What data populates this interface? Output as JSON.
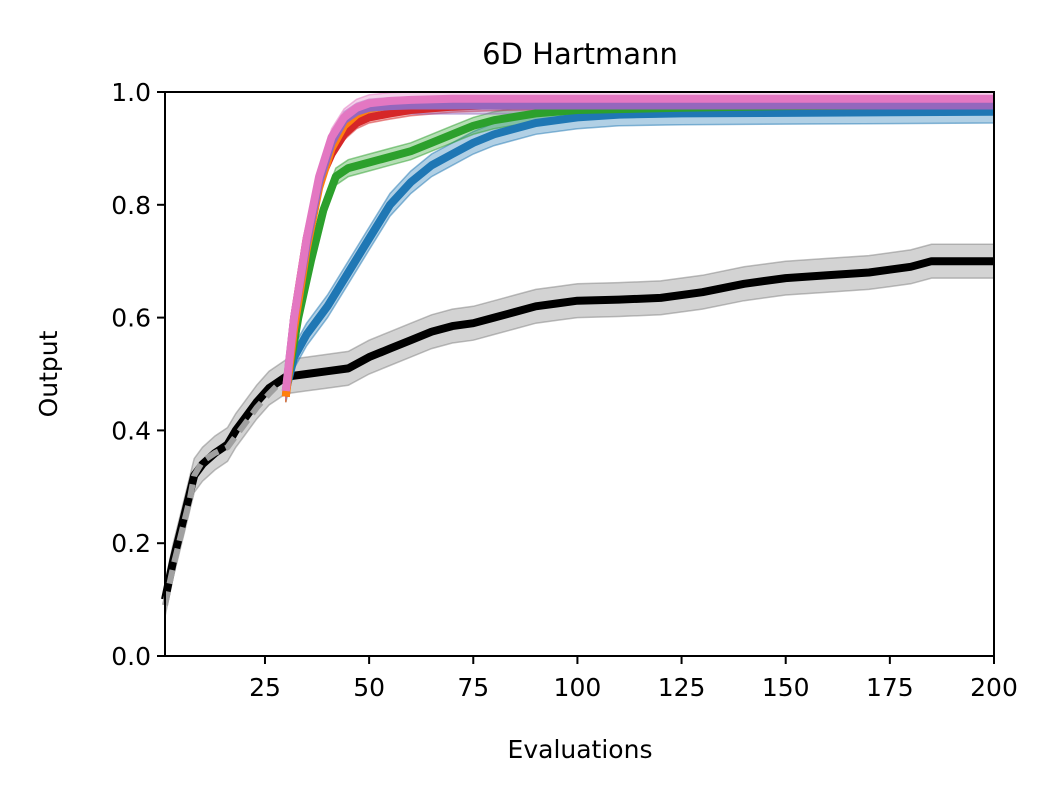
{
  "chart_data": {
    "type": "line",
    "title": "6D Hartmann",
    "xlabel": "Evaluations",
    "ylabel": "Output",
    "xlim": [
      1,
      200
    ],
    "ylim": [
      0.0,
      1.0
    ],
    "xticks": [
      25,
      50,
      75,
      100,
      125,
      150,
      175,
      200
    ],
    "xtick_labels": [
      "25",
      "50",
      "75",
      "100",
      "125",
      "150",
      "175",
      "200"
    ],
    "yticks": [
      0.0,
      0.2,
      0.4,
      0.6,
      0.8,
      1.0
    ],
    "ytick_labels": [
      "0.0",
      "0.2",
      "0.4",
      "0.6",
      "0.8",
      "1.0"
    ],
    "grid": false,
    "series": [
      {
        "name": "baseline-black",
        "color": "#000000",
        "band_color": "#808080",
        "style": "solid",
        "x": [
          1,
          3,
          5,
          7,
          8,
          10,
          13,
          16,
          18,
          20,
          23,
          26,
          28,
          30,
          35,
          40,
          45,
          50,
          55,
          60,
          65,
          70,
          75,
          80,
          85,
          90,
          95,
          100,
          110,
          120,
          130,
          140,
          150,
          160,
          170,
          180,
          185,
          190,
          200
        ],
        "y": [
          0.1,
          0.17,
          0.23,
          0.29,
          0.32,
          0.34,
          0.36,
          0.375,
          0.4,
          0.42,
          0.45,
          0.475,
          0.485,
          0.495,
          0.5,
          0.505,
          0.51,
          0.53,
          0.545,
          0.56,
          0.575,
          0.585,
          0.59,
          0.6,
          0.61,
          0.62,
          0.625,
          0.63,
          0.632,
          0.635,
          0.645,
          0.66,
          0.67,
          0.675,
          0.68,
          0.69,
          0.7,
          0.7,
          0.7
        ],
        "band": 0.03
      },
      {
        "name": "baseline-gray-dashed",
        "color": "#a0a0a0",
        "style": "dashed",
        "x": [
          1,
          3,
          5,
          7,
          8,
          10,
          13,
          16,
          18,
          20,
          23,
          26,
          28,
          29
        ],
        "y": [
          0.09,
          0.16,
          0.22,
          0.28,
          0.32,
          0.345,
          0.36,
          0.37,
          0.39,
          0.41,
          0.44,
          0.465,
          0.48,
          0.48
        ]
      },
      {
        "name": "blue",
        "color": "#1f77b4",
        "style": "solid",
        "x": [
          30,
          32,
          35,
          40,
          45,
          50,
          55,
          60,
          65,
          70,
          75,
          80,
          90,
          100,
          110,
          125,
          150,
          175,
          200
        ],
        "y": [
          0.47,
          0.53,
          0.57,
          0.62,
          0.68,
          0.74,
          0.8,
          0.84,
          0.87,
          0.89,
          0.91,
          0.925,
          0.945,
          0.955,
          0.96,
          0.962,
          0.963,
          0.964,
          0.965
        ],
        "band": 0.02
      },
      {
        "name": "green",
        "color": "#2ca02c",
        "style": "solid",
        "x": [
          30,
          33,
          36,
          39,
          42,
          45,
          50,
          55,
          60,
          65,
          70,
          75,
          80,
          90,
          100,
          125,
          150,
          175,
          200
        ],
        "y": [
          0.47,
          0.6,
          0.7,
          0.79,
          0.85,
          0.865,
          0.875,
          0.885,
          0.895,
          0.91,
          0.925,
          0.94,
          0.95,
          0.962,
          0.968,
          0.972,
          0.975,
          0.976,
          0.977
        ],
        "band": 0.015
      },
      {
        "name": "red",
        "color": "#d62728",
        "style": "solid",
        "x": [
          30,
          32,
          35,
          38,
          41,
          44,
          47,
          50,
          55,
          60,
          70,
          80,
          100,
          125,
          150,
          175,
          200
        ],
        "y": [
          0.46,
          0.6,
          0.74,
          0.84,
          0.89,
          0.925,
          0.945,
          0.955,
          0.962,
          0.968,
          0.974,
          0.977,
          0.98,
          0.981,
          0.982,
          0.982,
          0.982
        ],
        "band": 0.01
      },
      {
        "name": "orange",
        "color": "#ff7f0e",
        "style": "solid",
        "x": [
          30,
          32,
          35,
          38,
          41,
          44,
          47,
          50,
          55,
          60,
          70,
          80,
          100,
          125,
          150,
          175,
          200
        ],
        "y": [
          0.46,
          0.58,
          0.72,
          0.83,
          0.9,
          0.94,
          0.96,
          0.97,
          0.976,
          0.979,
          0.981,
          0.982,
          0.983,
          0.983,
          0.983,
          0.983,
          0.983
        ],
        "band": 0.01
      },
      {
        "name": "purple",
        "color": "#9467bd",
        "style": "solid",
        "x": [
          30,
          32,
          35,
          38,
          41,
          44,
          47,
          50,
          55,
          60,
          70,
          80,
          100,
          125,
          150,
          175,
          200
        ],
        "y": [
          0.47,
          0.6,
          0.73,
          0.84,
          0.91,
          0.95,
          0.965,
          0.972,
          0.975,
          0.976,
          0.976,
          0.976,
          0.976,
          0.976,
          0.976,
          0.976,
          0.976
        ],
        "band": 0.015
      },
      {
        "name": "pink",
        "color": "#e377c2",
        "style": "solid",
        "x": [
          30,
          32,
          35,
          38,
          41,
          44,
          47,
          50,
          55,
          60,
          70,
          80,
          100,
          125,
          150,
          175,
          200
        ],
        "y": [
          0.47,
          0.6,
          0.74,
          0.85,
          0.92,
          0.955,
          0.972,
          0.98,
          0.984,
          0.986,
          0.988,
          0.988,
          0.988,
          0.988,
          0.988,
          0.988,
          0.988
        ],
        "band": 0.015
      }
    ]
  }
}
